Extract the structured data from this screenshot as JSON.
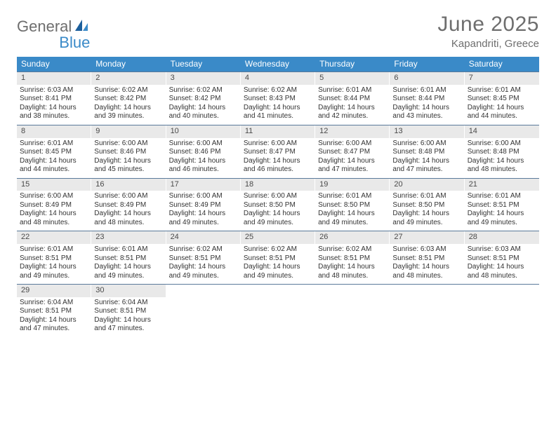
{
  "logo": {
    "word1": "General",
    "word2": "Blue"
  },
  "title": "June 2025",
  "location": "Kapandriti, Greece",
  "colors": {
    "header_bg": "#3a8ac8",
    "header_text": "#ffffff",
    "daynum_bg": "#e9e9e9",
    "week_divider": "#5a7a9a",
    "title_color": "#6e6e6e",
    "body_text": "#333333",
    "page_bg": "#ffffff"
  },
  "typography": {
    "title_fontsize": 30,
    "location_fontsize": 15,
    "dayheader_fontsize": 12,
    "daynum_fontsize": 11,
    "cell_fontsize": 10
  },
  "day_headers": [
    "Sunday",
    "Monday",
    "Tuesday",
    "Wednesday",
    "Thursday",
    "Friday",
    "Saturday"
  ],
  "weeks": [
    [
      {
        "n": "1",
        "sunrise": "6:03 AM",
        "sunset": "8:41 PM",
        "dl1": "Daylight: 14 hours",
        "dl2": "and 38 minutes."
      },
      {
        "n": "2",
        "sunrise": "6:02 AM",
        "sunset": "8:42 PM",
        "dl1": "Daylight: 14 hours",
        "dl2": "and 39 minutes."
      },
      {
        "n": "3",
        "sunrise": "6:02 AM",
        "sunset": "8:42 PM",
        "dl1": "Daylight: 14 hours",
        "dl2": "and 40 minutes."
      },
      {
        "n": "4",
        "sunrise": "6:02 AM",
        "sunset": "8:43 PM",
        "dl1": "Daylight: 14 hours",
        "dl2": "and 41 minutes."
      },
      {
        "n": "5",
        "sunrise": "6:01 AM",
        "sunset": "8:44 PM",
        "dl1": "Daylight: 14 hours",
        "dl2": "and 42 minutes."
      },
      {
        "n": "6",
        "sunrise": "6:01 AM",
        "sunset": "8:44 PM",
        "dl1": "Daylight: 14 hours",
        "dl2": "and 43 minutes."
      },
      {
        "n": "7",
        "sunrise": "6:01 AM",
        "sunset": "8:45 PM",
        "dl1": "Daylight: 14 hours",
        "dl2": "and 44 minutes."
      }
    ],
    [
      {
        "n": "8",
        "sunrise": "6:01 AM",
        "sunset": "8:45 PM",
        "dl1": "Daylight: 14 hours",
        "dl2": "and 44 minutes."
      },
      {
        "n": "9",
        "sunrise": "6:00 AM",
        "sunset": "8:46 PM",
        "dl1": "Daylight: 14 hours",
        "dl2": "and 45 minutes."
      },
      {
        "n": "10",
        "sunrise": "6:00 AM",
        "sunset": "8:46 PM",
        "dl1": "Daylight: 14 hours",
        "dl2": "and 46 minutes."
      },
      {
        "n": "11",
        "sunrise": "6:00 AM",
        "sunset": "8:47 PM",
        "dl1": "Daylight: 14 hours",
        "dl2": "and 46 minutes."
      },
      {
        "n": "12",
        "sunrise": "6:00 AM",
        "sunset": "8:47 PM",
        "dl1": "Daylight: 14 hours",
        "dl2": "and 47 minutes."
      },
      {
        "n": "13",
        "sunrise": "6:00 AM",
        "sunset": "8:48 PM",
        "dl1": "Daylight: 14 hours",
        "dl2": "and 47 minutes."
      },
      {
        "n": "14",
        "sunrise": "6:00 AM",
        "sunset": "8:48 PM",
        "dl1": "Daylight: 14 hours",
        "dl2": "and 48 minutes."
      }
    ],
    [
      {
        "n": "15",
        "sunrise": "6:00 AM",
        "sunset": "8:49 PM",
        "dl1": "Daylight: 14 hours",
        "dl2": "and 48 minutes."
      },
      {
        "n": "16",
        "sunrise": "6:00 AM",
        "sunset": "8:49 PM",
        "dl1": "Daylight: 14 hours",
        "dl2": "and 48 minutes."
      },
      {
        "n": "17",
        "sunrise": "6:00 AM",
        "sunset": "8:49 PM",
        "dl1": "Daylight: 14 hours",
        "dl2": "and 49 minutes."
      },
      {
        "n": "18",
        "sunrise": "6:00 AM",
        "sunset": "8:50 PM",
        "dl1": "Daylight: 14 hours",
        "dl2": "and 49 minutes."
      },
      {
        "n": "19",
        "sunrise": "6:01 AM",
        "sunset": "8:50 PM",
        "dl1": "Daylight: 14 hours",
        "dl2": "and 49 minutes."
      },
      {
        "n": "20",
        "sunrise": "6:01 AM",
        "sunset": "8:50 PM",
        "dl1": "Daylight: 14 hours",
        "dl2": "and 49 minutes."
      },
      {
        "n": "21",
        "sunrise": "6:01 AM",
        "sunset": "8:51 PM",
        "dl1": "Daylight: 14 hours",
        "dl2": "and 49 minutes."
      }
    ],
    [
      {
        "n": "22",
        "sunrise": "6:01 AM",
        "sunset": "8:51 PM",
        "dl1": "Daylight: 14 hours",
        "dl2": "and 49 minutes."
      },
      {
        "n": "23",
        "sunrise": "6:01 AM",
        "sunset": "8:51 PM",
        "dl1": "Daylight: 14 hours",
        "dl2": "and 49 minutes."
      },
      {
        "n": "24",
        "sunrise": "6:02 AM",
        "sunset": "8:51 PM",
        "dl1": "Daylight: 14 hours",
        "dl2": "and 49 minutes."
      },
      {
        "n": "25",
        "sunrise": "6:02 AM",
        "sunset": "8:51 PM",
        "dl1": "Daylight: 14 hours",
        "dl2": "and 49 minutes."
      },
      {
        "n": "26",
        "sunrise": "6:02 AM",
        "sunset": "8:51 PM",
        "dl1": "Daylight: 14 hours",
        "dl2": "and 48 minutes."
      },
      {
        "n": "27",
        "sunrise": "6:03 AM",
        "sunset": "8:51 PM",
        "dl1": "Daylight: 14 hours",
        "dl2": "and 48 minutes."
      },
      {
        "n": "28",
        "sunrise": "6:03 AM",
        "sunset": "8:51 PM",
        "dl1": "Daylight: 14 hours",
        "dl2": "and 48 minutes."
      }
    ],
    [
      {
        "n": "29",
        "sunrise": "6:04 AM",
        "sunset": "8:51 PM",
        "dl1": "Daylight: 14 hours",
        "dl2": "and 47 minutes."
      },
      {
        "n": "30",
        "sunrise": "6:04 AM",
        "sunset": "8:51 PM",
        "dl1": "Daylight: 14 hours",
        "dl2": "and 47 minutes."
      },
      {
        "empty": true
      },
      {
        "empty": true
      },
      {
        "empty": true
      },
      {
        "empty": true
      },
      {
        "empty": true
      }
    ]
  ],
  "labels": {
    "sunrise_prefix": "Sunrise: ",
    "sunset_prefix": "Sunset: "
  }
}
